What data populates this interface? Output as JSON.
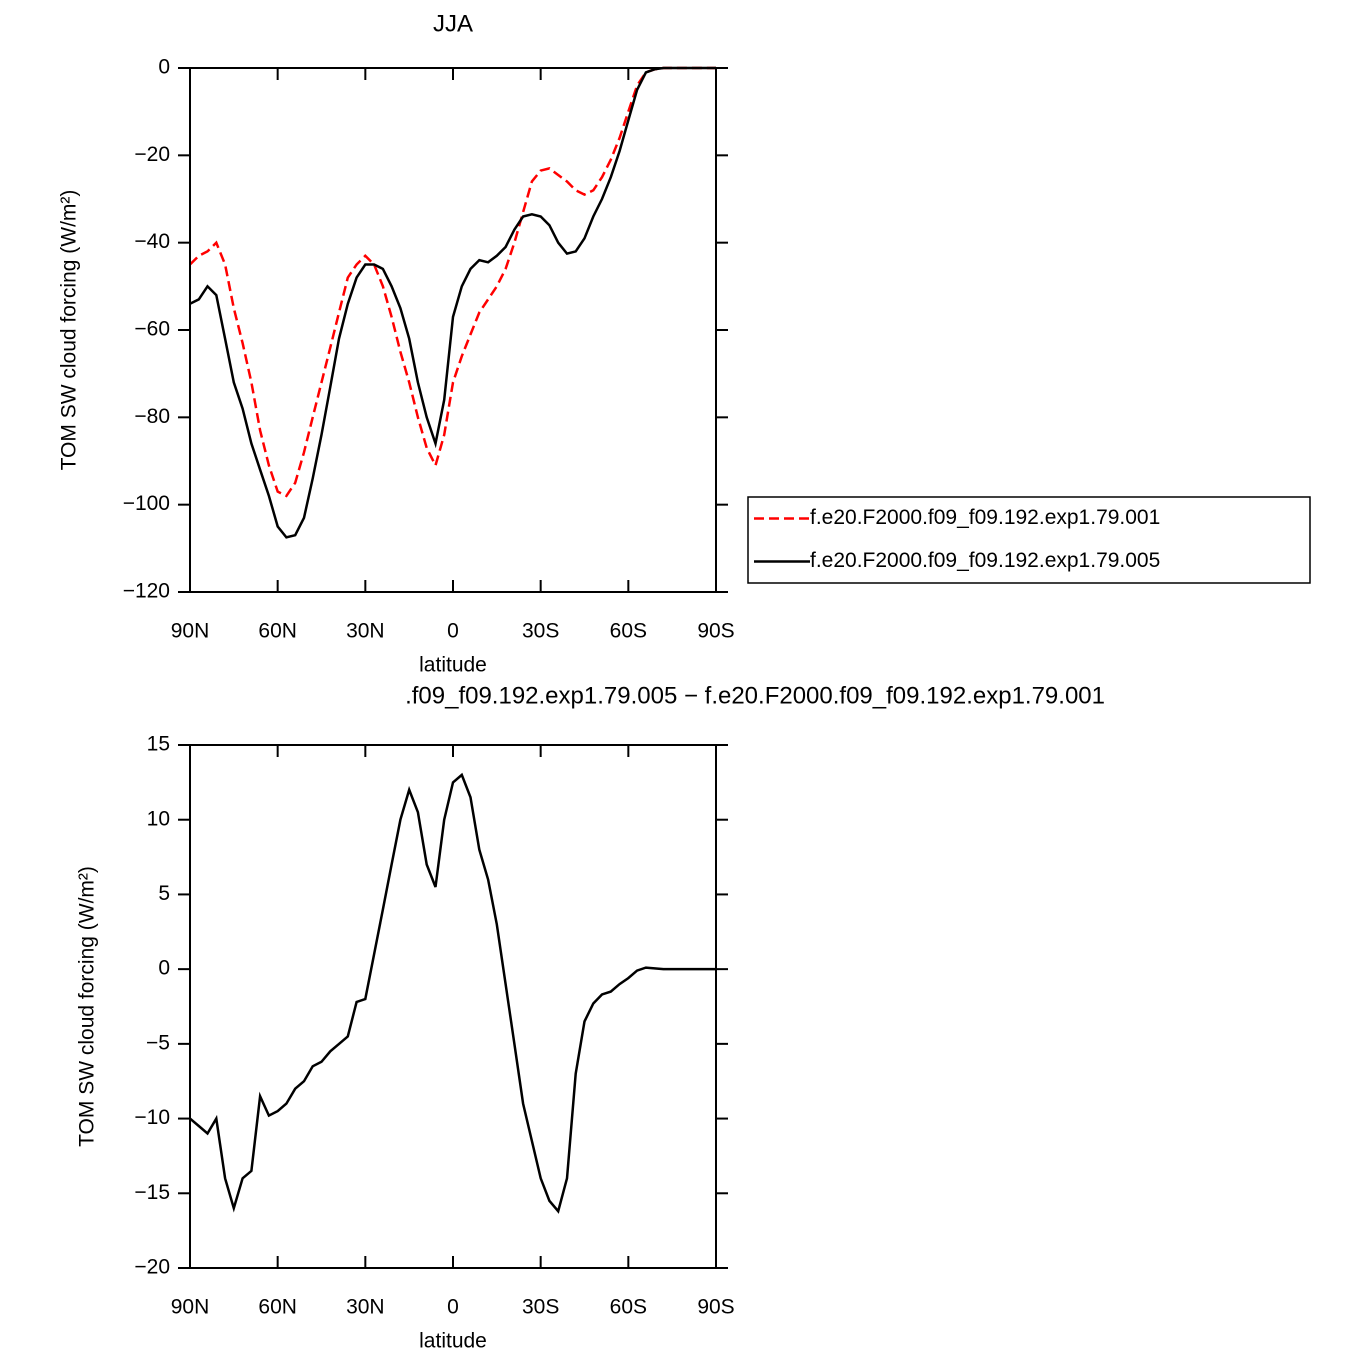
{
  "chart_data": [
    {
      "type": "line",
      "title": "JJA",
      "xlabel": "latitude",
      "ylabel": "TOM SW cloud forcing (W/m²)",
      "x": [
        90,
        87,
        84,
        81,
        78,
        75,
        72,
        69,
        66,
        63,
        60,
        57,
        54,
        51,
        48,
        45,
        42,
        39,
        36,
        33,
        30,
        27,
        24,
        21,
        18,
        15,
        12,
        9,
        6,
        3,
        0,
        -3,
        -6,
        -9,
        -12,
        -15,
        -18,
        -21,
        -24,
        -27,
        -30,
        -33,
        -36,
        -39,
        -42,
        -45,
        -48,
        -51,
        -54,
        -57,
        -60,
        -63,
        -66,
        -69,
        -72,
        -75,
        -78,
        -81,
        -84,
        -87,
        -90
      ],
      "series": [
        {
          "name": "f.e20.F2000.f09_f09.192.exp1.79.001",
          "color": "#ff0000",
          "dash": true,
          "values": [
            -45,
            -43,
            -42,
            -40,
            -45,
            -55,
            -63,
            -72,
            -83,
            -91,
            -97,
            -98,
            -95,
            -88,
            -80,
            -72,
            -64,
            -56,
            -48,
            -45,
            -43,
            -45,
            -50,
            -57,
            -65,
            -72,
            -80,
            -87,
            -91,
            -84,
            -72,
            -66,
            -61,
            -56,
            -53,
            -50,
            -46,
            -40,
            -33,
            -26,
            -23.5,
            -23,
            -24.5,
            -26,
            -28,
            -29,
            -28,
            -25,
            -21,
            -16,
            -10,
            -4,
            -1,
            -0.3,
            0,
            0,
            0,
            0,
            0,
            0,
            0
          ]
        },
        {
          "name": "f.e20.F2000.f09_f09.192.exp1.79.005",
          "color": "#000000",
          "dash": false,
          "values": [
            -54,
            -53,
            -50,
            -52,
            -62,
            -72,
            -78,
            -86,
            -92,
            -98,
            -105,
            -107.5,
            -107,
            -103,
            -94,
            -84,
            -73,
            -62,
            -54,
            -48,
            -45,
            -45,
            -46,
            -50,
            -55,
            -62,
            -72,
            -80,
            -86,
            -76,
            -57,
            -50,
            -46,
            -44,
            -44.5,
            -43,
            -41,
            -37,
            -34,
            -33.5,
            -34,
            -36,
            -40,
            -42.5,
            -42,
            -39,
            -34,
            -30,
            -25,
            -19,
            -12,
            -5,
            -1,
            -0.3,
            0,
            0,
            0,
            0,
            0,
            0,
            0
          ]
        }
      ],
      "xlim": [
        90,
        -90
      ],
      "xticks": [
        {
          "value": 90,
          "label": "90N"
        },
        {
          "value": 60,
          "label": "60N"
        },
        {
          "value": 30,
          "label": "30N"
        },
        0,
        {
          "value": -30,
          "label": "30S"
        },
        {
          "value": -60,
          "label": "60S"
        },
        {
          "value": -90,
          "label": "90S"
        }
      ],
      "ylim": [
        -120,
        0
      ],
      "yticks": [
        0,
        {
          "value": -20,
          "label": "−20"
        },
        {
          "value": -40,
          "label": "−40"
        },
        {
          "value": -60,
          "label": "−60"
        },
        {
          "value": -80,
          "label": "−80"
        },
        {
          "value": -100,
          "label": "−100"
        },
        {
          "value": -120,
          "label": "−120"
        }
      ],
      "legend": "right"
    },
    {
      "type": "line",
      "title": ".f09_f09.192.exp1.79.005 − f.e20.F2000.f09_f09.192.exp1.79.001",
      "xlabel": "latitude",
      "ylabel": "TOM SW cloud forcing (W/m²)",
      "x": [
        90,
        87,
        84,
        81,
        78,
        75,
        72,
        69,
        66,
        63,
        60,
        57,
        54,
        51,
        48,
        45,
        42,
        39,
        36,
        33,
        30,
        27,
        24,
        21,
        18,
        15,
        12,
        9,
        6,
        3,
        0,
        -3,
        -6,
        -9,
        -12,
        -15,
        -18,
        -21,
        -24,
        -27,
        -30,
        -33,
        -36,
        -39,
        -42,
        -45,
        -48,
        -51,
        -54,
        -57,
        -60,
        -63,
        -66,
        -69,
        -72,
        -75,
        -78,
        -81,
        -84,
        -87,
        -90
      ],
      "series": [
        {
          "color": "#000000",
          "dash": false,
          "values": [
            -10,
            -10.5,
            -11,
            -10,
            -14,
            -16,
            -14,
            -13.5,
            -8.5,
            -9.8,
            -9.5,
            -9,
            -8,
            -7.5,
            -6.5,
            -6.2,
            -5.5,
            -5,
            -4.5,
            -2.2,
            -2,
            1,
            4,
            7,
            10,
            12,
            10.5,
            7,
            5.5,
            10,
            12.5,
            13,
            11.5,
            8,
            6,
            3,
            -1,
            -5,
            -9,
            -11.5,
            -14,
            -15.5,
            -16.2,
            -14,
            -7,
            -3.5,
            -2.3,
            -1.7,
            -1.5,
            -1,
            -0.6,
            -0.1,
            0.1,
            0.05,
            0,
            0,
            0,
            0,
            0,
            0,
            0
          ]
        }
      ],
      "xlim": [
        90,
        -90
      ],
      "xticks": [
        {
          "value": 90,
          "label": "90N"
        },
        {
          "value": 60,
          "label": "60N"
        },
        {
          "value": 30,
          "label": "30N"
        },
        0,
        {
          "value": -30,
          "label": "30S"
        },
        {
          "value": -60,
          "label": "60S"
        },
        {
          "value": -90,
          "label": "90S"
        }
      ],
      "ylim": [
        -20,
        15
      ],
      "yticks": [
        15,
        10,
        5,
        0,
        {
          "value": -5,
          "label": "−5"
        },
        {
          "value": -10,
          "label": "−10"
        },
        {
          "value": -15,
          "label": "−15"
        },
        {
          "value": -20,
          "label": "−20"
        }
      ]
    }
  ]
}
